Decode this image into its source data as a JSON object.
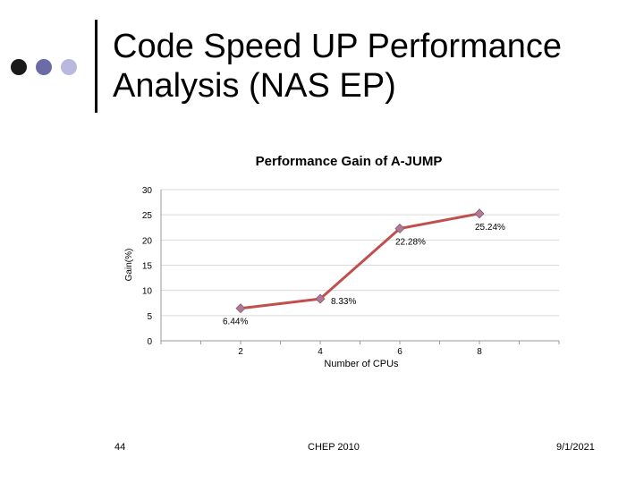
{
  "slide": {
    "title": "Code Speed UP Performance Analysis (NAS EP)",
    "footer_left": "44",
    "footer_center": "CHEP 2010",
    "footer_right": "9/1/2021"
  },
  "colors": {
    "line": "#c0504d",
    "marker": "#b07a94",
    "grid": "#d9d9d9",
    "axis": "#999999"
  },
  "chart_data": {
    "type": "line",
    "title": "Performance Gain of A-JUMP",
    "xlabel": "Number of CPUs",
    "ylabel": "Gain(%)",
    "x": [
      2,
      4,
      6,
      8
    ],
    "xlim": [
      0,
      10
    ],
    "ylim": [
      0,
      30
    ],
    "y_ticks": [
      0,
      5,
      10,
      15,
      20,
      25,
      30
    ],
    "x_ticks": [
      2,
      4,
      6,
      8
    ],
    "grid": true,
    "legend": "none",
    "series": [
      {
        "x": [
          2,
          4,
          6,
          8
        ],
        "values": [
          6.44,
          8.33,
          22.28,
          25.24
        ],
        "labels": [
          "6.44%",
          "8.33%",
          "22.28%",
          "25.24%"
        ]
      }
    ]
  }
}
